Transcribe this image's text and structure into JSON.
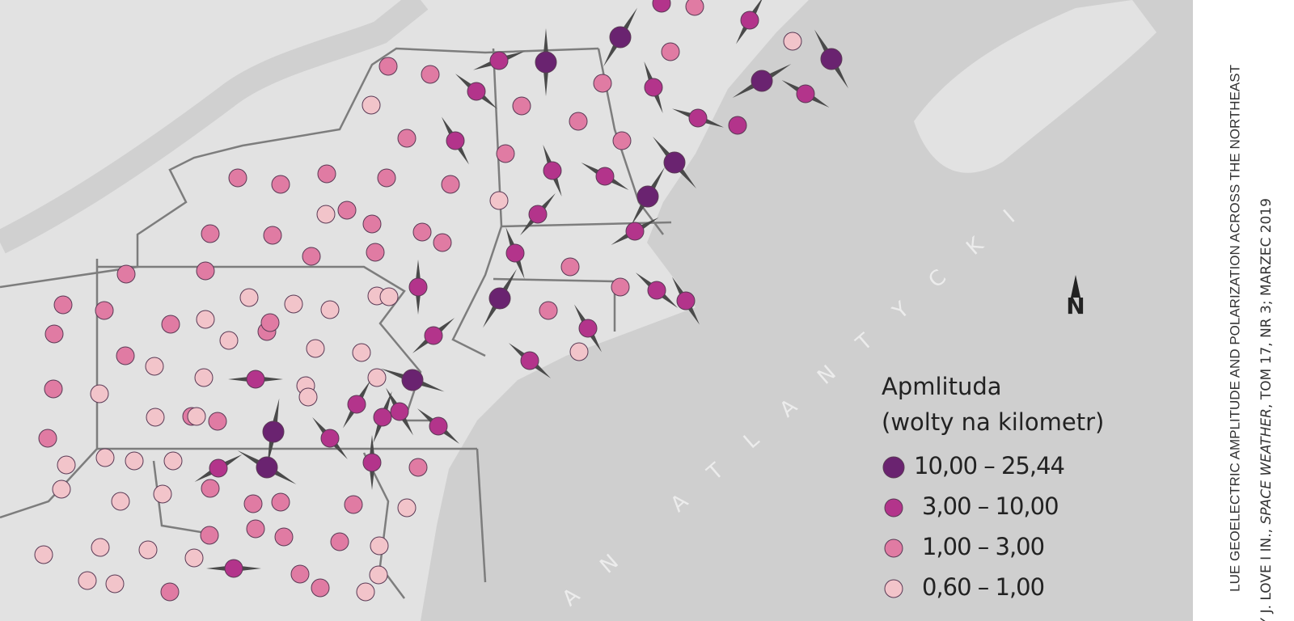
{
  "map": {
    "ocean_label": "AN ATLANTYCKI",
    "north_label": "N",
    "legend": {
      "title_lines": [
        "Apmlituda",
        "(wolty na kilometr)"
      ],
      "items": [
        {
          "label": "10,00 – 25,44",
          "color": "#6a2370"
        },
        {
          "label": "3,00 – 10,00",
          "color": "#b3348b"
        },
        {
          "label": "1,00 – 3,00",
          "color": "#e07ba3"
        },
        {
          "label": "0,60 – 1,00",
          "color": "#f2c4ca"
        }
      ]
    },
    "credits": {
      "line1": "LUE GEOELECTRIC AMPLITUDE AND POLARIZATION ACROSS THE NORTHEAST",
      "line2": [
        "Y J. LOVE I IN., ",
        "SPACE WEATHER",
        ", TOM 17, NR 3; MARZEC 2019"
      ]
    }
  }
}
